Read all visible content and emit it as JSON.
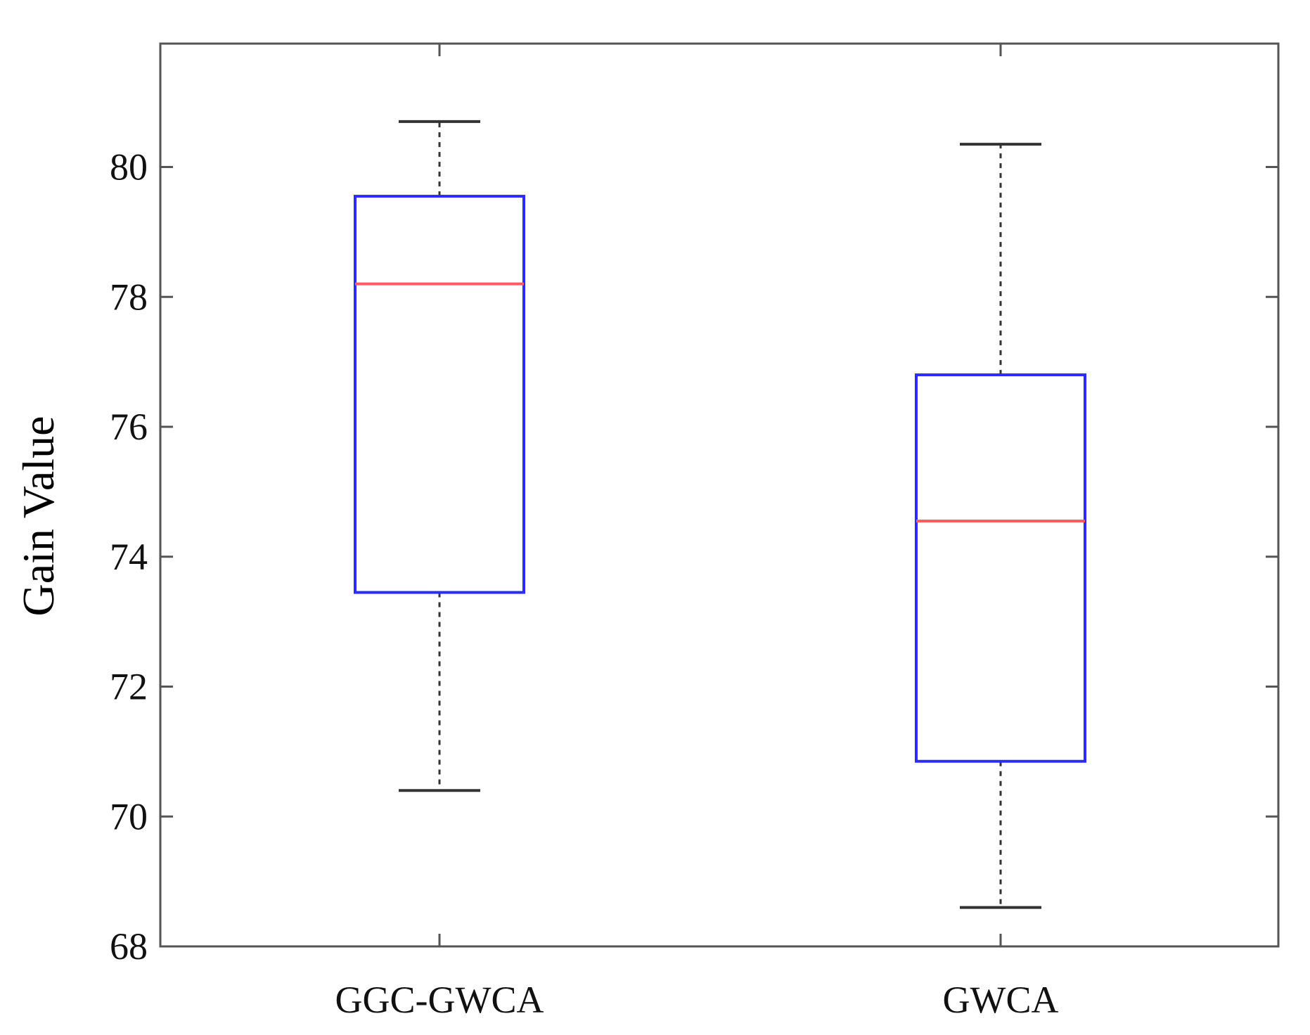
{
  "chart_data": {
    "type": "boxplot",
    "title": "",
    "xlabel": "",
    "ylabel": "Gain Value",
    "ylim": [
      68,
      81.9
    ],
    "yticks": [
      68,
      70,
      72,
      74,
      76,
      78,
      80
    ],
    "grid": false,
    "categories": [
      "GGC-GWCA",
      "GWCA"
    ],
    "boxes": [
      {
        "category": "GGC-GWCA",
        "whisker_low": 70.4,
        "q1": 73.45,
        "median": 78.2,
        "q3": 79.55,
        "whisker_high": 80.7
      },
      {
        "category": "GWCA",
        "whisker_low": 68.6,
        "q1": 70.85,
        "median": 74.55,
        "q3": 76.8,
        "whisker_high": 80.35
      }
    ],
    "colors": {
      "box": "#2b2bff",
      "median": "#ff5a66",
      "whisker": "#333333",
      "axes": "#555555"
    }
  }
}
